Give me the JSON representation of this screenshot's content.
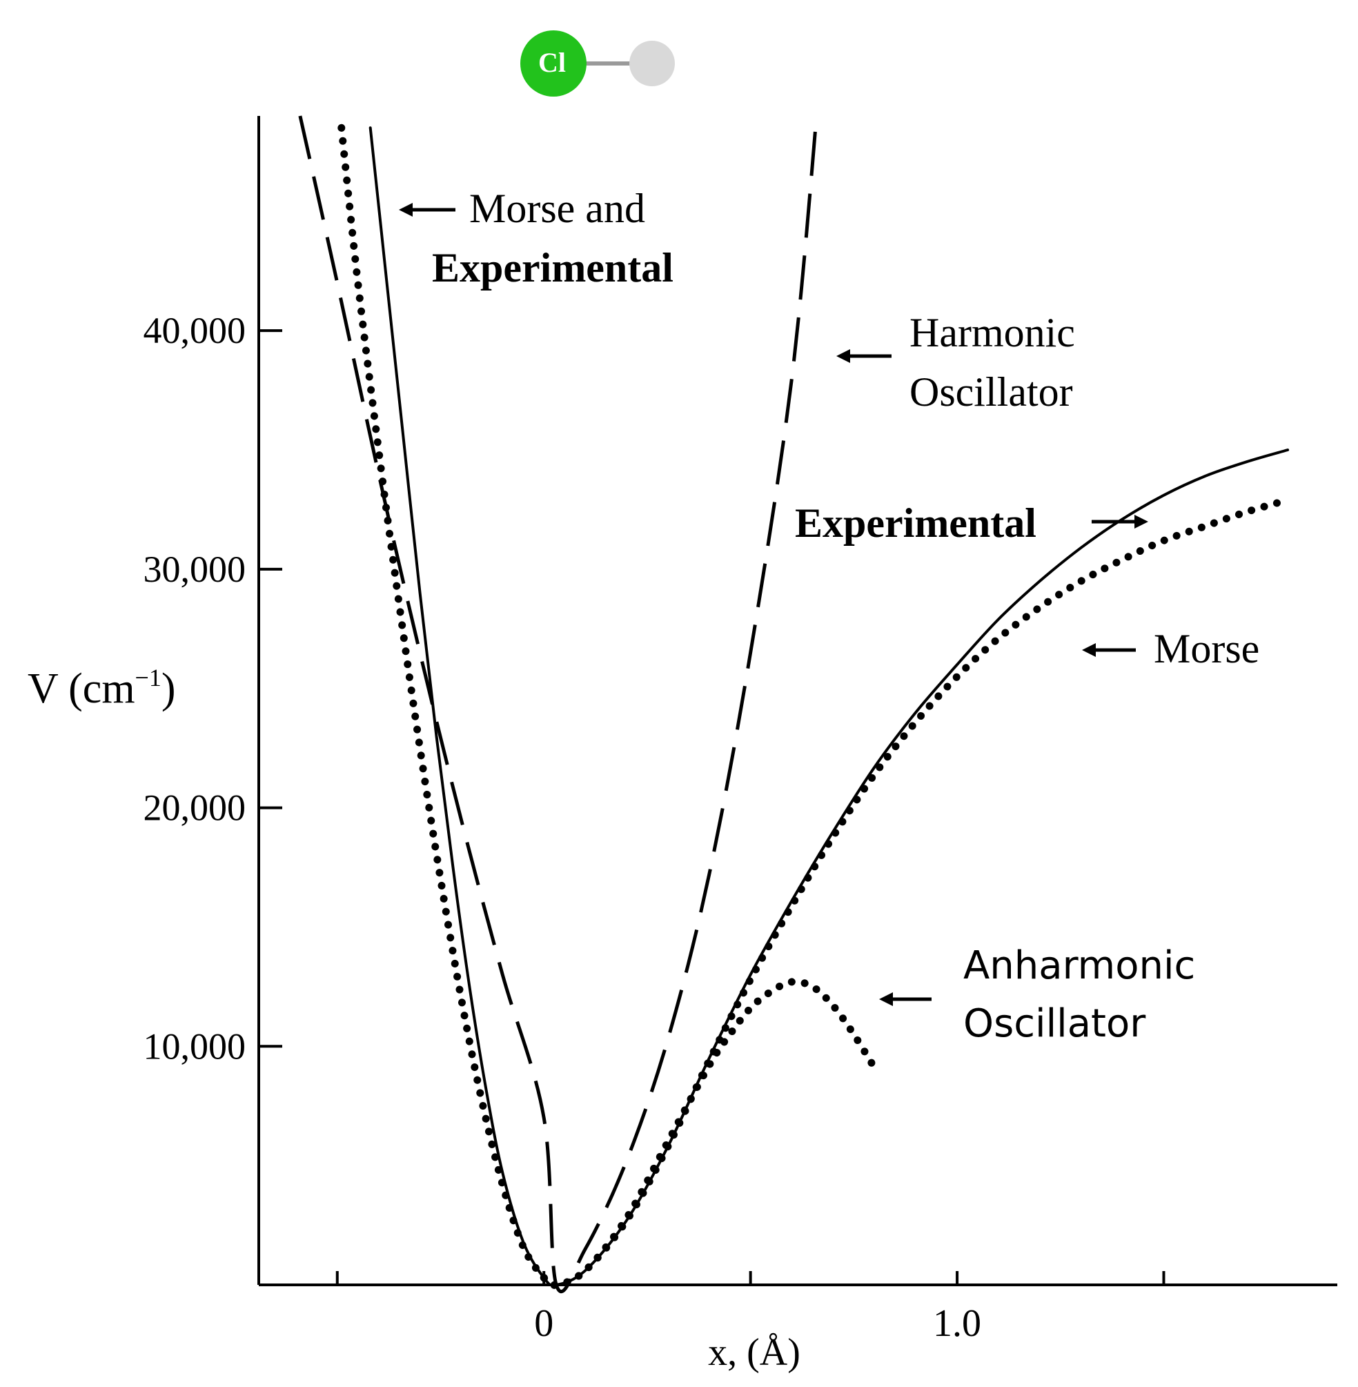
{
  "molecule": {
    "atom_left": "Cl",
    "atom_left_color": "#22c21c",
    "atom_right_color": "#d9d9d9",
    "bond_color": "#9a9a9a"
  },
  "chart_data": {
    "type": "line",
    "title": "",
    "xlabel": "x, (Å)",
    "ylabel_main": "V (cm",
    "ylabel_exp": "−1",
    "ylabel_close": ")",
    "xlim": [
      -0.69,
      1.92
    ],
    "ylim": [
      0,
      49000
    ],
    "x_tick_positions": [
      -0.5,
      0,
      0.5,
      1.0,
      1.5
    ],
    "x_tick_labels": [
      {
        "value": 0,
        "label": "0"
      },
      {
        "value": 1.0,
        "label": "1.0"
      }
    ],
    "y_ticks": [
      {
        "value": 10000,
        "label": "10,000"
      },
      {
        "value": 20000,
        "label": "20,000"
      },
      {
        "value": 30000,
        "label": "30,000"
      },
      {
        "value": 40000,
        "label": "40,000"
      }
    ],
    "grid": false,
    "series": [
      {
        "name": "Harmonic Oscillator",
        "style": "long-dash",
        "x": [
          -0.59,
          -0.5,
          -0.4,
          -0.3,
          -0.2,
          -0.1,
          0,
          0.03,
          0.1,
          0.2,
          0.3,
          0.4,
          0.5,
          0.6,
          0.66
        ],
        "y": [
          49000,
          42000,
          34000,
          26500,
          19500,
          13000,
          7000,
          0,
          1500,
          5200,
          10300,
          17200,
          26500,
          38000,
          49000
        ]
      },
      {
        "name": "Morse",
        "style": "dotted",
        "x": [
          -0.49,
          -0.45,
          -0.4,
          -0.35,
          -0.3,
          -0.25,
          -0.2,
          -0.15,
          -0.1,
          -0.05,
          0,
          0.03,
          0.1,
          0.2,
          0.3,
          0.4,
          0.5,
          0.6,
          0.7,
          0.8,
          0.9,
          1.0,
          1.1,
          1.2,
          1.3,
          1.4,
          1.5,
          1.6,
          1.7,
          1.8
        ],
        "y": [
          48500,
          42000,
          35000,
          28500,
          22500,
          17000,
          12000,
          7700,
          4200,
          1600,
          300,
          0,
          600,
          2700,
          5800,
          9400,
          12800,
          15900,
          18800,
          21400,
          23600,
          25500,
          27100,
          28400,
          29500,
          30400,
          31200,
          31800,
          32400,
          32900
        ]
      },
      {
        "name": "Experimental",
        "style": "solid",
        "x": [
          -0.42,
          -0.38,
          -0.34,
          -0.3,
          -0.26,
          -0.22,
          -0.18,
          -0.14,
          -0.1,
          -0.05,
          0,
          0.03,
          0.1,
          0.2,
          0.3,
          0.4,
          0.5,
          0.6,
          0.7,
          0.8,
          0.9,
          1.0,
          1.1,
          1.2,
          1.3,
          1.4,
          1.5,
          1.6,
          1.7,
          1.8
        ],
        "y": [
          48500,
          42000,
          35500,
          29000,
          23000,
          17500,
          12500,
          8200,
          4700,
          1800,
          300,
          0,
          600,
          2700,
          5800,
          9500,
          13000,
          16100,
          19000,
          21700,
          24000,
          26000,
          27900,
          29500,
          30900,
          32100,
          33100,
          33900,
          34500,
          35000
        ]
      },
      {
        "name": "Anharmonic Oscillator",
        "style": "dotted",
        "x": [
          0,
          0.03,
          0.1,
          0.2,
          0.3,
          0.4,
          0.45,
          0.5,
          0.55,
          0.6,
          0.65,
          0.7,
          0.75,
          0.8
        ],
        "y": [
          300,
          0,
          600,
          2800,
          6000,
          9200,
          10500,
          11600,
          12300,
          12700,
          12500,
          11700,
          10500,
          9100
        ]
      }
    ],
    "annotations": [
      {
        "line1": "Morse and",
        "line2": "Experimental"
      },
      {
        "line1": "Harmonic",
        "line2": "Oscillator"
      },
      {
        "line1": "Experimental"
      },
      {
        "line1": "Morse"
      },
      {
        "line1": "Anharmonic",
        "line2": "Oscillator"
      }
    ]
  }
}
